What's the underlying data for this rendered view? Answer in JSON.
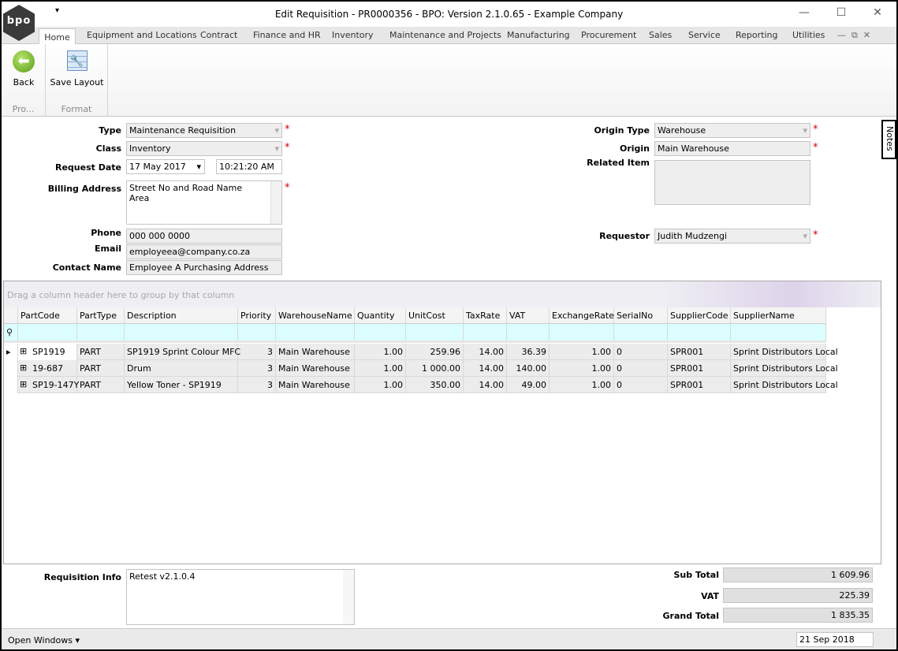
{
  "window": {
    "title": "Edit Requisition - PR0000356 - BPO: Version 2.1.0.65 - Example Company",
    "logo_text": "bpo"
  },
  "tabs": [
    "Home",
    "Equipment and Locations",
    "Contract",
    "Finance and HR",
    "Inventory",
    "Maintenance and Projects",
    "Manufacturing",
    "Procurement",
    "Sales",
    "Service",
    "Reporting",
    "Utilities"
  ],
  "ribbon": {
    "back": "Back",
    "save_layout": "Save Layout",
    "group1": "Pro...",
    "group2": "Format"
  },
  "form": {
    "type_label": "Type",
    "type": "Maintenance Requisition",
    "class_label": "Class",
    "class": "Inventory",
    "request_date_label": "Request Date",
    "request_date": "17 May 2017",
    "request_time": "10:21:20 AM",
    "billing_label": "Billing Address",
    "billing_line1": "Street No and Road Name",
    "billing_line2": "Area",
    "phone_label": "Phone",
    "phone": "000 000 0000",
    "email_label": "Email",
    "email": "employeea@company.co.za",
    "contact_label": "Contact Name",
    "contact": "Employee A Purchasing Address",
    "origin_type_label": "Origin Type",
    "origin_type": "Warehouse",
    "origin_label": "Origin",
    "origin": "Main Warehouse",
    "related_label": "Related Item",
    "related": "",
    "requestor_label": "Requestor",
    "requestor": "Judith Mudzengi"
  },
  "notes": "Notes",
  "grid": {
    "group_hint": "Drag a column header here to group by that column",
    "columns": [
      "PartCode",
      "PartType",
      "Description",
      "Priority",
      "WarehouseName",
      "Quantity",
      "UnitCost",
      "TaxRate",
      "VAT",
      "ExchangeRate",
      "SerialNo",
      "SupplierCode",
      "SupplierName"
    ],
    "rows": [
      [
        "SP1919",
        "PART",
        "SP1919 Sprint Colour MFC",
        "3",
        "Main Warehouse",
        "1.00",
        "259.96",
        "14.00",
        "36.39",
        "1.00",
        "0",
        "SPR001",
        "Sprint Distributors Local"
      ],
      [
        "19-687",
        "PART",
        "Drum",
        "3",
        "Main Warehouse",
        "1.00",
        "1 000.00",
        "14.00",
        "140.00",
        "1.00",
        "0",
        "SPR001",
        "Sprint Distributors Local"
      ],
      [
        "SP19-147Y",
        "PART",
        "Yellow Toner - SP1919",
        "3",
        "Main Warehouse",
        "1.00",
        "350.00",
        "14.00",
        "49.00",
        "1.00",
        "0",
        "SPR001",
        "Sprint Distributors Local"
      ]
    ]
  },
  "footer": {
    "info_label": "Requisition Info",
    "info": "Retest v2.1.0.4",
    "subtotal_label": "Sub Total",
    "subtotal": "1 609.96",
    "vat_label": "VAT",
    "vat": "225.39",
    "grand_label": "Grand Total",
    "grand": "1 835.35"
  },
  "status": {
    "open_windows": "Open Windows ▾",
    "date": "21 Sep 2018"
  }
}
